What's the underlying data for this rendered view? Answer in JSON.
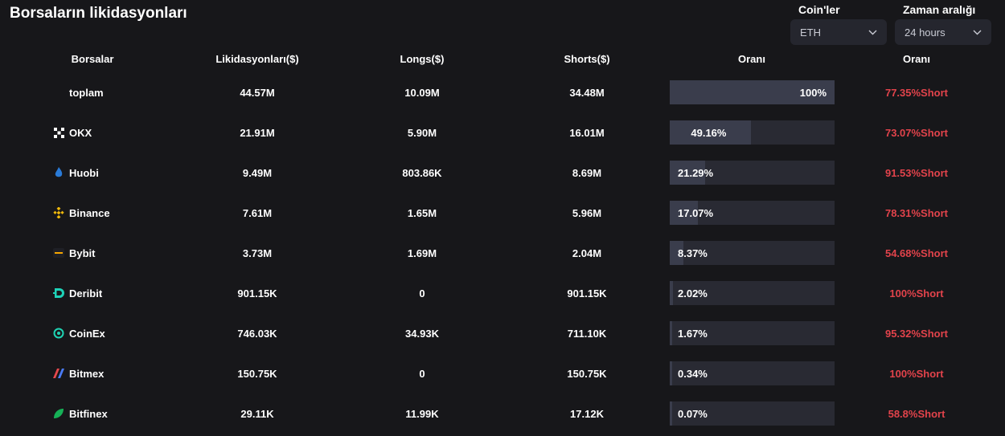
{
  "title": "Borsaların likidasyonları",
  "filters": {
    "coin_label": "Coin'ler",
    "coin_value": "ETH",
    "time_label": "Zaman aralığı",
    "time_value": "24 hours"
  },
  "columns": {
    "exchange": "Borsalar",
    "liquidations": "Likidasyonları($)",
    "longs": "Longs($)",
    "shorts": "Shorts($)",
    "share": "Oranı",
    "ratio": "Oranı"
  },
  "colors": {
    "short_ratio": "#e2434b",
    "bar_fill": "#3a3d4c",
    "bar_track": "#292a33"
  },
  "rows": [
    {
      "exchange": "toplam",
      "icon": "",
      "liquidations": "44.57M",
      "longs": "10.09M",
      "shorts": "34.48M",
      "share_label": "100%",
      "share_value": 100,
      "ratio": "77.35%Short"
    },
    {
      "exchange": "OKX",
      "icon": "okx-icon",
      "liquidations": "21.91M",
      "longs": "5.90M",
      "shorts": "16.01M",
      "share_label": "49.16%",
      "share_value": 49.16,
      "ratio": "73.07%Short"
    },
    {
      "exchange": "Huobi",
      "icon": "huobi-icon",
      "liquidations": "9.49M",
      "longs": "803.86K",
      "shorts": "8.69M",
      "share_label": "21.29%",
      "share_value": 21.29,
      "ratio": "91.53%Short"
    },
    {
      "exchange": "Binance",
      "icon": "binance-icon",
      "liquidations": "7.61M",
      "longs": "1.65M",
      "shorts": "5.96M",
      "share_label": "17.07%",
      "share_value": 17.07,
      "ratio": "78.31%Short"
    },
    {
      "exchange": "Bybit",
      "icon": "bybit-icon",
      "liquidations": "3.73M",
      "longs": "1.69M",
      "shorts": "2.04M",
      "share_label": "8.37%",
      "share_value": 8.37,
      "ratio": "54.68%Short"
    },
    {
      "exchange": "Deribit",
      "icon": "deribit-icon",
      "liquidations": "901.15K",
      "longs": "0",
      "shorts": "901.15K",
      "share_label": "2.02%",
      "share_value": 2.02,
      "ratio": "100%Short"
    },
    {
      "exchange": "CoinEx",
      "icon": "coinex-icon",
      "liquidations": "746.03K",
      "longs": "34.93K",
      "shorts": "711.10K",
      "share_label": "1.67%",
      "share_value": 1.67,
      "ratio": "95.32%Short"
    },
    {
      "exchange": "Bitmex",
      "icon": "bitmex-icon",
      "liquidations": "150.75K",
      "longs": "0",
      "shorts": "150.75K",
      "share_label": "0.34%",
      "share_value": 0.34,
      "ratio": "100%Short"
    },
    {
      "exchange": "Bitfinex",
      "icon": "bitfinex-icon",
      "liquidations": "29.11K",
      "longs": "11.99K",
      "shorts": "17.12K",
      "share_label": "0.07%",
      "share_value": 0.07,
      "ratio": "58.8%Short"
    }
  ]
}
